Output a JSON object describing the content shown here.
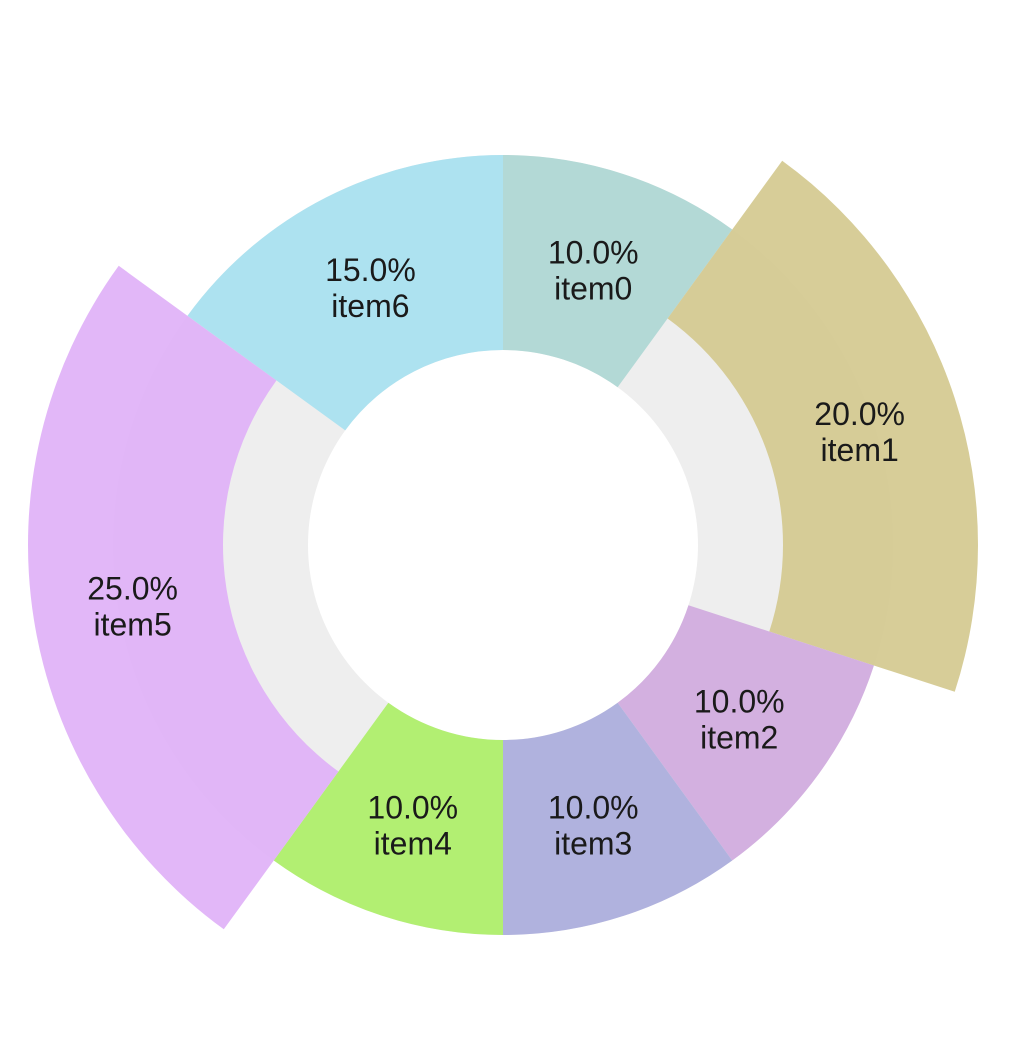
{
  "chart_data": {
    "type": "pie",
    "variant": "donut",
    "title": "",
    "slices": [
      {
        "name": "item0",
        "value": 10.0,
        "percent_label": "10.0%",
        "color": "#b3d9d6",
        "exploded": false
      },
      {
        "name": "item1",
        "value": 20.0,
        "percent_label": "20.0%",
        "color": "#d4c98f",
        "exploded": true
      },
      {
        "name": "item2",
        "value": 10.0,
        "percent_label": "10.0%",
        "color": "#d3b0e0",
        "exploded": false
      },
      {
        "name": "item3",
        "value": 10.0,
        "percent_label": "10.0%",
        "color": "#b0b2de",
        "exploded": false
      },
      {
        "name": "item4",
        "value": 10.0,
        "percent_label": "10.0%",
        "color": "#b2ef72",
        "exploded": false
      },
      {
        "name": "item5",
        "value": 25.0,
        "percent_label": "25.0%",
        "color": "#dfb1f7",
        "exploded": true
      },
      {
        "name": "item6",
        "value": 15.0,
        "percent_label": "15.0%",
        "color": "#ade2f0",
        "exploded": false
      }
    ],
    "start_angle": "top",
    "direction": "clockwise",
    "background_ring_color": "#eeeeee",
    "legend": "none"
  }
}
